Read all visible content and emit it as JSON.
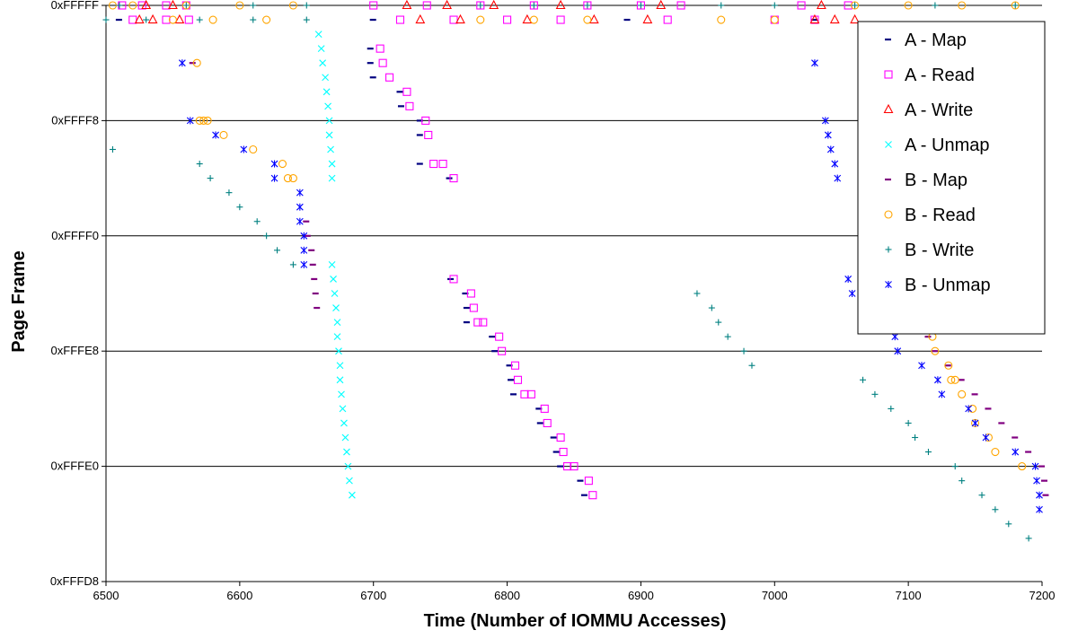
{
  "chart_data": {
    "type": "scatter",
    "xlabel": "Time (Number of IOMMU Accesses)",
    "ylabel": "Page Frame",
    "xlim": [
      6500,
      7200
    ],
    "ylim": [
      0,
      40
    ],
    "x_ticks": [
      6500,
      6600,
      6700,
      6800,
      6900,
      7000,
      7100,
      7200
    ],
    "x_tick_labels": [
      "6500",
      "6600",
      "6700",
      "6800",
      "6900",
      "7000",
      "7100",
      "7200"
    ],
    "y_ticks": [
      0,
      8,
      16,
      24,
      32,
      40
    ],
    "y_tick_labels": [
      "0xFFFD8",
      "0xFFFE0",
      "0xFFFE8",
      "0xFFFF0",
      "0xFFFF8",
      "0xFFFFF"
    ],
    "y_gridlines": true,
    "legend_position": "right",
    "series": [
      {
        "name": "A - Map",
        "color": "#000080",
        "marker": "dash",
        "points": [
          [
            6698,
            37
          ],
          [
            6698,
            36
          ],
          [
            6700,
            35
          ],
          [
            6720,
            34
          ],
          [
            6721,
            33
          ],
          [
            6735,
            32
          ],
          [
            6735,
            31
          ],
          [
            6735,
            29
          ],
          [
            6757,
            28
          ],
          [
            6758,
            21
          ],
          [
            6769,
            20
          ],
          [
            6770,
            19
          ],
          [
            6770,
            18
          ],
          [
            6789,
            17
          ],
          [
            6791,
            16
          ],
          [
            6802,
            15
          ],
          [
            6803,
            14
          ],
          [
            6805,
            13
          ],
          [
            6824,
            12
          ],
          [
            6825,
            11
          ],
          [
            6835,
            10
          ],
          [
            6837,
            9
          ],
          [
            6840,
            8
          ],
          [
            6855,
            7
          ],
          [
            6858,
            6
          ],
          [
            6510,
            39
          ],
          [
            6700,
            39
          ],
          [
            6890,
            39
          ],
          [
            7030,
            39
          ]
        ]
      },
      {
        "name": "A - Read",
        "color": "#FF00FF",
        "marker": "square",
        "points": [
          [
            6705,
            37
          ],
          [
            6707,
            36
          ],
          [
            6712,
            35
          ],
          [
            6725,
            34
          ],
          [
            6727,
            33
          ],
          [
            6739,
            32
          ],
          [
            6741,
            31
          ],
          [
            6745,
            29
          ],
          [
            6752,
            29
          ],
          [
            6760,
            28
          ],
          [
            6760,
            21
          ],
          [
            6773,
            20
          ],
          [
            6775,
            19
          ],
          [
            6778,
            18
          ],
          [
            6782,
            18
          ],
          [
            6794,
            17
          ],
          [
            6796,
            16
          ],
          [
            6806,
            15
          ],
          [
            6808,
            14
          ],
          [
            6813,
            13
          ],
          [
            6818,
            13
          ],
          [
            6828,
            12
          ],
          [
            6830,
            11
          ],
          [
            6840,
            10
          ],
          [
            6842,
            9
          ],
          [
            6845,
            8
          ],
          [
            6850,
            8
          ],
          [
            6861,
            7
          ],
          [
            6864,
            6
          ],
          [
            6512,
            40
          ],
          [
            6527,
            40
          ],
          [
            6545,
            40
          ],
          [
            6560,
            40
          ],
          [
            6700,
            40
          ],
          [
            6740,
            40
          ],
          [
            6780,
            40
          ],
          [
            6820,
            40
          ],
          [
            6860,
            40
          ],
          [
            6900,
            40
          ],
          [
            6930,
            40
          ],
          [
            7020,
            40
          ],
          [
            7055,
            40
          ],
          [
            6520,
            39
          ],
          [
            6545,
            39
          ],
          [
            6562,
            39
          ],
          [
            6720,
            39
          ],
          [
            6760,
            39
          ],
          [
            6800,
            39
          ],
          [
            6840,
            39
          ],
          [
            6920,
            39
          ],
          [
            7000,
            39
          ],
          [
            7030,
            39
          ]
        ]
      },
      {
        "name": "A - Write",
        "color": "#FF0000",
        "marker": "triangle",
        "points": [
          [
            6530,
            40
          ],
          [
            6550,
            40
          ],
          [
            6725,
            40
          ],
          [
            6755,
            40
          ],
          [
            6790,
            40
          ],
          [
            6840,
            40
          ],
          [
            6915,
            40
          ],
          [
            7035,
            40
          ],
          [
            6525,
            39
          ],
          [
            6535,
            39
          ],
          [
            6555,
            39
          ],
          [
            6735,
            39
          ],
          [
            6765,
            39
          ],
          [
            6815,
            39
          ],
          [
            6865,
            39
          ],
          [
            6905,
            39
          ],
          [
            7030,
            39
          ],
          [
            7045,
            39
          ],
          [
            7060,
            39
          ]
        ]
      },
      {
        "name": "A - Unmap",
        "color": "#00FFFF",
        "marker": "x",
        "points": [
          [
            6659,
            38
          ],
          [
            6661,
            37
          ],
          [
            6662,
            36
          ],
          [
            6664,
            35
          ],
          [
            6665,
            34
          ],
          [
            6666,
            33
          ],
          [
            6667,
            32
          ],
          [
            6667,
            31
          ],
          [
            6668,
            30
          ],
          [
            6669,
            29
          ],
          [
            6669,
            28
          ],
          [
            6669,
            22
          ],
          [
            6670,
            21
          ],
          [
            6671,
            20
          ],
          [
            6672,
            19
          ],
          [
            6673,
            18
          ],
          [
            6673,
            17
          ],
          [
            6674,
            16
          ],
          [
            6675,
            15
          ],
          [
            6675,
            14
          ],
          [
            6676,
            13
          ],
          [
            6677,
            12
          ],
          [
            6678,
            11
          ],
          [
            6679,
            10
          ],
          [
            6680,
            9
          ],
          [
            6681,
            8
          ],
          [
            6682,
            7
          ],
          [
            6684,
            6
          ]
        ]
      },
      {
        "name": "B - Map",
        "color": "#800080",
        "marker": "dash",
        "points": [
          [
            6565,
            36
          ],
          [
            6650,
            25
          ],
          [
            6651,
            24
          ],
          [
            6654,
            23
          ],
          [
            6655,
            22
          ],
          [
            6656,
            21
          ],
          [
            6657,
            20
          ],
          [
            6658,
            19
          ],
          [
            7115,
            17
          ],
          [
            7120,
            16
          ],
          [
            7130,
            15
          ],
          [
            7140,
            14
          ],
          [
            7150,
            13
          ],
          [
            7160,
            12
          ],
          [
            7170,
            11
          ],
          [
            7180,
            10
          ],
          [
            7190,
            9
          ],
          [
            7200,
            8
          ],
          [
            7202,
            7
          ],
          [
            7203,
            6
          ]
        ]
      },
      {
        "name": "B - Read",
        "color": "#FFA500",
        "marker": "circle",
        "points": [
          [
            6568,
            36
          ],
          [
            6570,
            32
          ],
          [
            6573,
            32
          ],
          [
            6576,
            32
          ],
          [
            6588,
            31
          ],
          [
            6610,
            30
          ],
          [
            6632,
            29
          ],
          [
            6636,
            28
          ],
          [
            6640,
            28
          ],
          [
            7118,
            17
          ],
          [
            7120,
            16
          ],
          [
            7130,
            15
          ],
          [
            7132,
            14
          ],
          [
            7135,
            14
          ],
          [
            7140,
            13
          ],
          [
            7148,
            12
          ],
          [
            7150,
            11
          ],
          [
            7160,
            10
          ],
          [
            7165,
            9
          ],
          [
            7185,
            8
          ],
          [
            6505,
            40
          ],
          [
            6520,
            40
          ],
          [
            6560,
            40
          ],
          [
            6600,
            40
          ],
          [
            6640,
            40
          ],
          [
            7060,
            40
          ],
          [
            7100,
            40
          ],
          [
            7140,
            40
          ],
          [
            7180,
            40
          ],
          [
            6550,
            39
          ],
          [
            6580,
            39
          ],
          [
            6620,
            39
          ],
          [
            6780,
            39
          ],
          [
            6820,
            39
          ],
          [
            6860,
            39
          ],
          [
            6960,
            39
          ],
          [
            7000,
            39
          ]
        ]
      },
      {
        "name": "B - Write",
        "color": "#008080",
        "marker": "plus",
        "points": [
          [
            6505,
            30
          ],
          [
            6570,
            29
          ],
          [
            6578,
            28
          ],
          [
            6592,
            27
          ],
          [
            6600,
            26
          ],
          [
            6613,
            25
          ],
          [
            6620,
            24
          ],
          [
            6628,
            23
          ],
          [
            6640,
            22
          ],
          [
            6942,
            20
          ],
          [
            6953,
            19
          ],
          [
            6958,
            18
          ],
          [
            6965,
            17
          ],
          [
            6977,
            16
          ],
          [
            6983,
            15
          ],
          [
            7066,
            14
          ],
          [
            7075,
            13
          ],
          [
            7087,
            12
          ],
          [
            7100,
            11
          ],
          [
            7105,
            10
          ],
          [
            7115,
            9
          ],
          [
            7135,
            8
          ],
          [
            7140,
            7
          ],
          [
            7155,
            6
          ],
          [
            7165,
            5
          ],
          [
            7175,
            4
          ],
          [
            7190,
            3
          ],
          [
            6510,
            40
          ],
          [
            6560,
            40
          ],
          [
            6610,
            40
          ],
          [
            6650,
            40
          ],
          [
            6780,
            40
          ],
          [
            6820,
            40
          ],
          [
            6860,
            40
          ],
          [
            6900,
            40
          ],
          [
            6960,
            40
          ],
          [
            7000,
            40
          ],
          [
            7060,
            40
          ],
          [
            7120,
            40
          ],
          [
            7180,
            40
          ],
          [
            6500,
            39
          ],
          [
            6530,
            39
          ],
          [
            6570,
            39
          ],
          [
            6610,
            39
          ],
          [
            6650,
            39
          ]
        ]
      },
      {
        "name": "B - Unmap",
        "color": "#0000FF",
        "marker": "asterisk",
        "points": [
          [
            6557,
            36
          ],
          [
            6563,
            32
          ],
          [
            6582,
            31
          ],
          [
            6603,
            30
          ],
          [
            6626,
            29
          ],
          [
            6626,
            28
          ],
          [
            6645,
            27
          ],
          [
            6645,
            26
          ],
          [
            6645,
            25
          ],
          [
            6648,
            24
          ],
          [
            6648,
            23
          ],
          [
            6648,
            22
          ],
          [
            7030,
            36
          ],
          [
            7038,
            32
          ],
          [
            7040,
            31
          ],
          [
            7042,
            30
          ],
          [
            7045,
            29
          ],
          [
            7047,
            28
          ],
          [
            7055,
            21
          ],
          [
            7058,
            20
          ],
          [
            7090,
            17
          ],
          [
            7092,
            16
          ],
          [
            7110,
            15
          ],
          [
            7122,
            14
          ],
          [
            7125,
            13
          ],
          [
            7145,
            12
          ],
          [
            7150,
            11
          ],
          [
            7158,
            10
          ],
          [
            7180,
            9
          ],
          [
            7195,
            8
          ],
          [
            7196,
            7
          ],
          [
            7198,
            6
          ],
          [
            7198,
            5
          ]
        ]
      }
    ]
  }
}
